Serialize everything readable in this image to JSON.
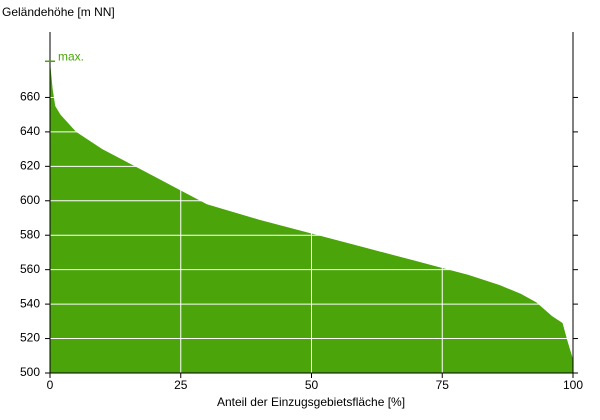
{
  "chart_data": {
    "type": "area",
    "ylabel": "Geländehöhe [m NN]",
    "xlabel": "Anteil der Einzugsgebietsfläche [%]",
    "x": [
      0,
      0.5,
      1,
      2,
      5,
      10,
      15,
      20,
      25,
      30,
      40,
      50,
      60,
      70,
      75,
      80,
      86,
      90,
      93,
      96,
      98,
      99,
      100
    ],
    "values": [
      681,
      665,
      655,
      650,
      640,
      630,
      622,
      614,
      606,
      598,
      589,
      581,
      573,
      565,
      561,
      557,
      551,
      546,
      541,
      533,
      529,
      518,
      508
    ],
    "color": "#4aa40a",
    "xlim": [
      0,
      100
    ],
    "xticks": [
      0,
      25,
      50,
      75,
      100
    ],
    "ylim": [
      500,
      698
    ],
    "yticks": [
      500,
      520,
      540,
      560,
      580,
      600,
      620,
      640,
      660
    ],
    "grid": true,
    "annotation": {
      "text": "max.",
      "y": 681
    }
  }
}
